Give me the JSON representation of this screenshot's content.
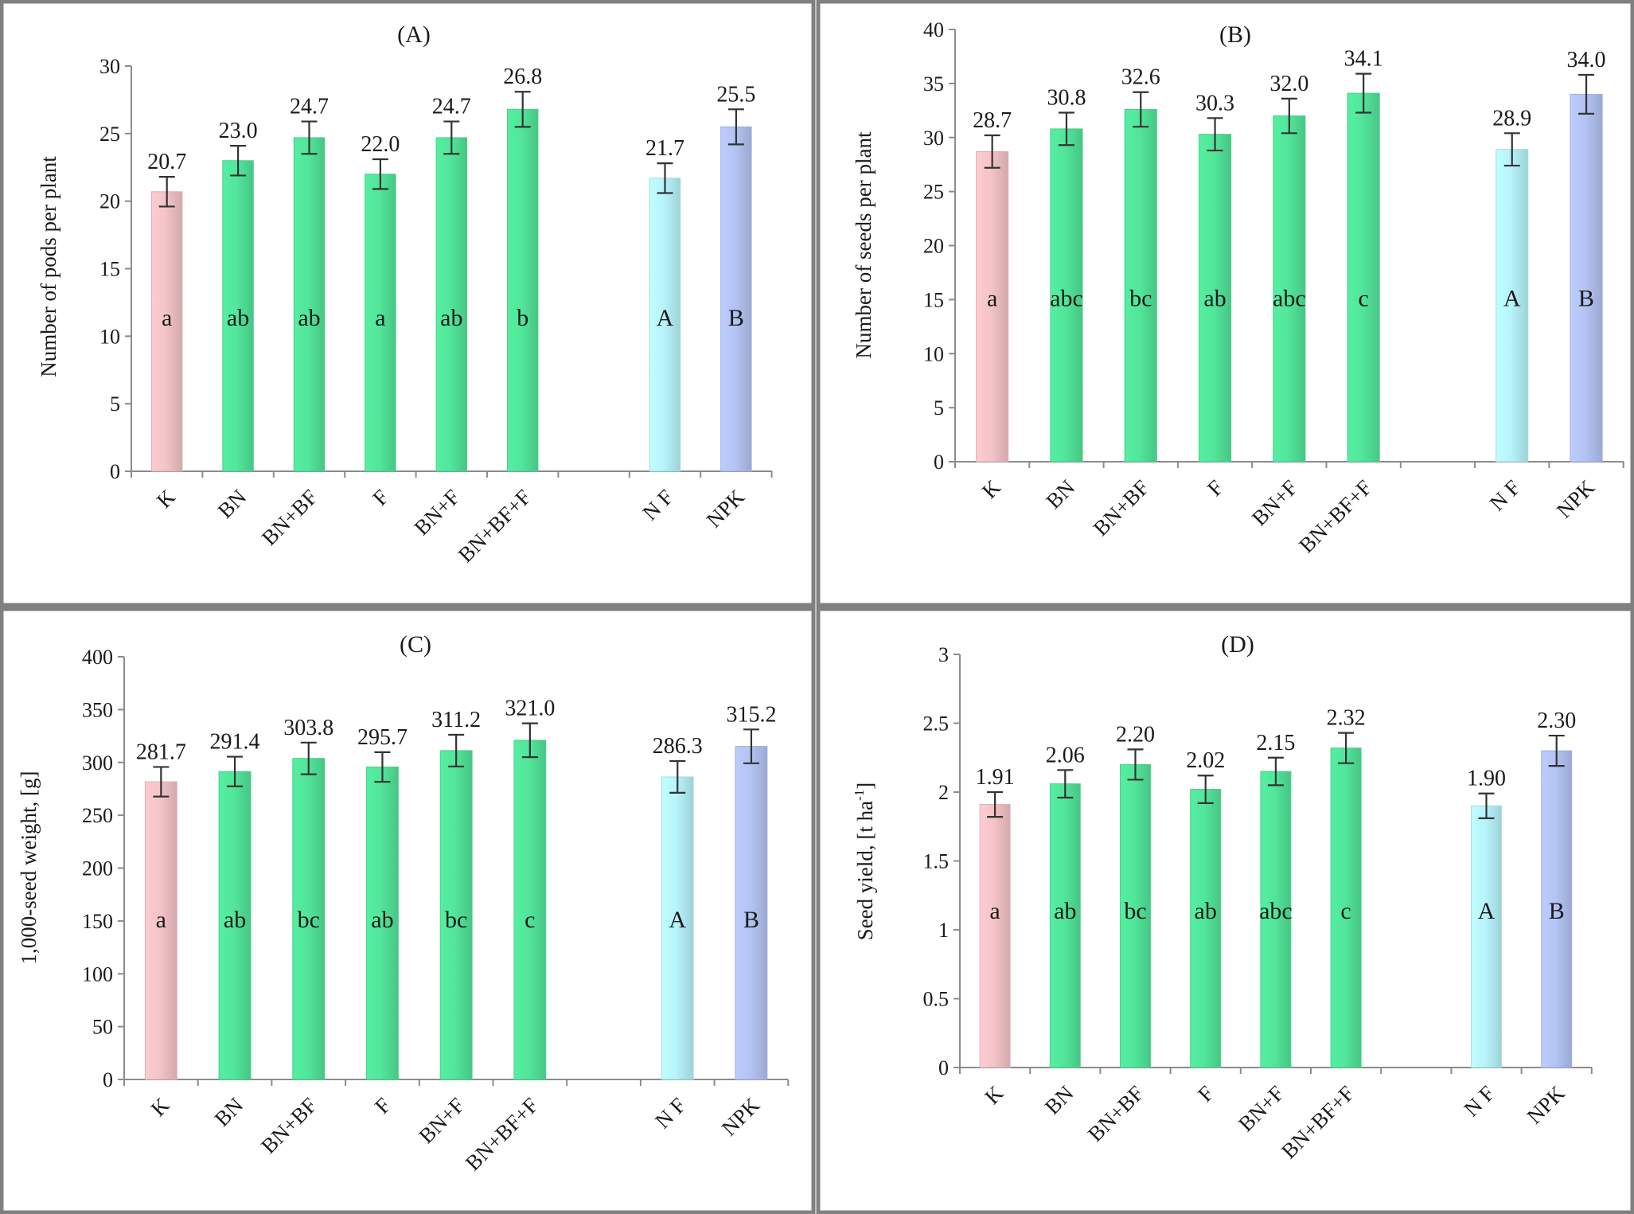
{
  "colors": {
    "control": "#f4c4c8",
    "biofertilizer": "#52e69b",
    "nf": "#b8f4fb",
    "npk": "#b4c4f4",
    "frame": "#808080"
  },
  "chart_data": [
    {
      "type": "bar",
      "title": "(A)",
      "ylabel": "Number of pods per plant",
      "ylim": [
        0,
        30
      ],
      "yticks": [
        0,
        5,
        10,
        15,
        20,
        25,
        30
      ],
      "ytick_labels": [
        "0",
        "5",
        "10",
        "15",
        "20",
        "25",
        "30"
      ],
      "categories": [
        "K",
        "BN",
        "BN+BF",
        "F",
        "BN+F",
        "BN+BF+F",
        "",
        "N F",
        "NPK"
      ],
      "values": [
        20.7,
        23.0,
        24.7,
        22.0,
        24.7,
        26.8,
        null,
        21.7,
        25.5
      ],
      "value_labels": [
        "20.7",
        "23.0",
        "24.7",
        "22.0",
        "24.7",
        "26.8",
        "",
        "21.7",
        "25.5"
      ],
      "errors": [
        1.1,
        1.1,
        1.2,
        1.1,
        1.2,
        1.3,
        null,
        1.1,
        1.3
      ],
      "letters": [
        "a",
        "ab",
        "ab",
        "a",
        "ab",
        "b",
        "",
        "A",
        "B"
      ],
      "color_keys": [
        "control",
        "biofertilizer",
        "biofertilizer",
        "biofertilizer",
        "biofertilizer",
        "biofertilizer",
        "",
        "nf",
        "npk"
      ],
      "grid": false
    },
    {
      "type": "bar",
      "title": "(B)",
      "ylabel": "Number of seeds per plant",
      "ylim": [
        0,
        40
      ],
      "yticks": [
        0,
        5,
        10,
        15,
        20,
        25,
        30,
        35,
        40
      ],
      "ytick_labels": [
        "0",
        "5",
        "10",
        "15",
        "20",
        "25",
        "30",
        "35",
        "40"
      ],
      "categories": [
        "K",
        "BN",
        "BN+BF",
        "F",
        "BN+F",
        "BN+BF+F",
        "",
        "N F",
        "NPK"
      ],
      "values": [
        28.7,
        30.8,
        32.6,
        30.3,
        32.0,
        34.1,
        null,
        28.9,
        34.0
      ],
      "value_labels": [
        "28.7",
        "30.8",
        "32.6",
        "30.3",
        "32.0",
        "34.1",
        "",
        "28.9",
        "34.0"
      ],
      "errors": [
        1.5,
        1.5,
        1.6,
        1.5,
        1.6,
        1.8,
        null,
        1.5,
        1.8
      ],
      "letters": [
        "a",
        "abc",
        "bc",
        "ab",
        "abc",
        "c",
        "",
        "A",
        "B"
      ],
      "color_keys": [
        "control",
        "biofertilizer",
        "biofertilizer",
        "biofertilizer",
        "biofertilizer",
        "biofertilizer",
        "",
        "nf",
        "npk"
      ],
      "grid": false
    },
    {
      "type": "bar",
      "title": "(C)",
      "ylabel": "1,000-seed weight, [g]",
      "ylim": [
        0,
        400
      ],
      "yticks": [
        0,
        50,
        100,
        150,
        200,
        250,
        300,
        350,
        400
      ],
      "ytick_labels": [
        "0",
        "50",
        "100",
        "150",
        "200",
        "250",
        "300",
        "350",
        "400"
      ],
      "categories": [
        "K",
        "BN",
        "BN+BF",
        "F",
        "BN+F",
        "BN+BF+F",
        "",
        "N F",
        "NPK"
      ],
      "values": [
        281.7,
        291.4,
        303.8,
        295.7,
        311.2,
        321.0,
        null,
        286.3,
        315.2
      ],
      "value_labels": [
        "281.7",
        "291.4",
        "303.8",
        "295.7",
        "311.2",
        "321.0",
        "",
        "286.3",
        "315.2"
      ],
      "errors": [
        14,
        14,
        15,
        14,
        15,
        16,
        null,
        15,
        16
      ],
      "letters": [
        "a",
        "ab",
        "bc",
        "ab",
        "bc",
        "c",
        "",
        "A",
        "B"
      ],
      "color_keys": [
        "control",
        "biofertilizer",
        "biofertilizer",
        "biofertilizer",
        "biofertilizer",
        "biofertilizer",
        "",
        "nf",
        "npk"
      ],
      "grid": false
    },
    {
      "type": "bar",
      "title": "(D)",
      "ylabel": "Seed yield, [t ha",
      "ylabel_sup": "-1",
      "ylabel_end": "]",
      "ylim": [
        0,
        3
      ],
      "yticks": [
        0,
        0.5,
        1,
        1.5,
        2,
        2.5,
        3
      ],
      "ytick_labels": [
        "0",
        "0.5",
        "1",
        "1.5",
        "2",
        "2.5",
        "3"
      ],
      "categories": [
        "K",
        "BN",
        "BN+BF",
        "F",
        "BN+F",
        "BN+BF+F",
        "",
        "N F",
        "NPK"
      ],
      "values": [
        1.91,
        2.06,
        2.2,
        2.02,
        2.15,
        2.32,
        null,
        1.9,
        2.3
      ],
      "value_labels": [
        "1.91",
        "2.06",
        "2.20",
        "2.02",
        "2.15",
        "2.32",
        "",
        "1.90",
        "2.30"
      ],
      "errors": [
        0.09,
        0.1,
        0.11,
        0.1,
        0.1,
        0.11,
        null,
        0.09,
        0.11
      ],
      "letters": [
        "a",
        "ab",
        "bc",
        "ab",
        "abc",
        "c",
        "",
        "A",
        "B"
      ],
      "color_keys": [
        "control",
        "biofertilizer",
        "biofertilizer",
        "biofertilizer",
        "biofertilizer",
        "biofertilizer",
        "",
        "nf",
        "npk"
      ],
      "grid": false
    }
  ]
}
